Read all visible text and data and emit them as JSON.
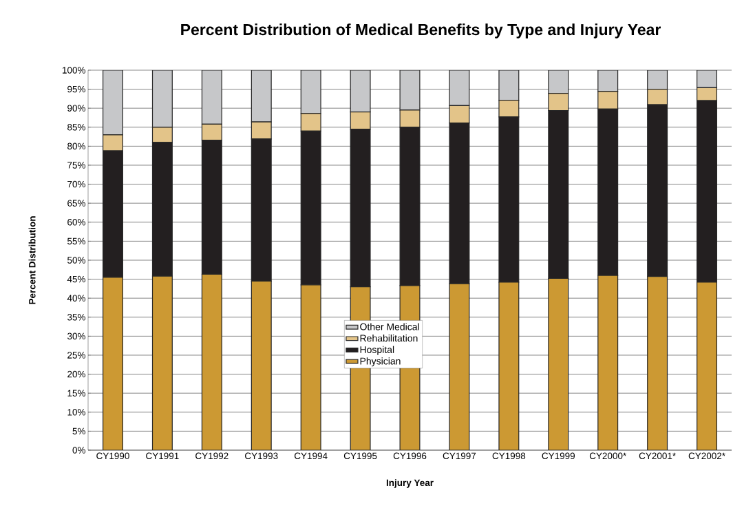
{
  "chart_data": {
    "type": "bar",
    "title": "Percent Distribution of Medical Benefits by Type and Injury Year",
    "xlabel": "Injury Year",
    "ylabel": "Percent Distribution",
    "categories": [
      "CY1990",
      "CY1991",
      "CY1992",
      "CY1993",
      "CY1994",
      "CY1995",
      "CY1996",
      "CY1997",
      "CY1998",
      "CY1999",
      "CY2000*",
      "CY2001*",
      "CY2002*"
    ],
    "series": [
      {
        "name": "Physician",
        "color": "#cc9933",
        "values": [
          45.5,
          45.8,
          46.3,
          44.5,
          43.5,
          43.0,
          43.3,
          43.8,
          44.2,
          45.2,
          46.0,
          45.7,
          44.2
        ]
      },
      {
        "name": "Hospital",
        "color": "#231f20",
        "values": [
          33.3,
          35.2,
          35.3,
          37.4,
          40.5,
          41.5,
          41.7,
          42.3,
          43.5,
          44.2,
          43.8,
          45.2,
          47.8
        ]
      },
      {
        "name": "Rehabilitation",
        "color": "#e3c489",
        "values": [
          4.2,
          4.0,
          4.2,
          4.5,
          4.6,
          4.5,
          4.5,
          4.6,
          4.4,
          4.5,
          4.6,
          4.1,
          3.4
        ]
      },
      {
        "name": "Other Medical",
        "color": "#c6c7c9",
        "values": [
          17.0,
          15.0,
          14.2,
          13.6,
          11.4,
          11.0,
          10.5,
          9.3,
          7.9,
          6.1,
          5.6,
          5.0,
          4.6
        ]
      }
    ],
    "stacked": true,
    "ylim": [
      0,
      100
    ],
    "yticks": [
      {
        "value": 0,
        "label": "0%"
      },
      {
        "value": 5,
        "label": "5%"
      },
      {
        "value": 10,
        "label": "10%"
      },
      {
        "value": 15,
        "label": "15%"
      },
      {
        "value": 20,
        "label": "20%"
      },
      {
        "value": 25,
        "label": "25%"
      },
      {
        "value": 30,
        "label": "30%"
      },
      {
        "value": 35,
        "label": "35%"
      },
      {
        "value": 40,
        "label": "40%"
      },
      {
        "value": 45,
        "label": "45%"
      },
      {
        "value": 50,
        "label": "50%"
      },
      {
        "value": 55,
        "label": "55%"
      },
      {
        "value": 60,
        "label": "60%"
      },
      {
        "value": 65,
        "label": "65%"
      },
      {
        "value": 70,
        "label": "70%"
      },
      {
        "value": 75,
        "label": "75%"
      },
      {
        "value": 80,
        "label": "80%"
      },
      {
        "value": 85,
        "label": "85%"
      },
      {
        "value": 90,
        "label": "90%"
      },
      {
        "value": 95,
        "label": "95%"
      },
      {
        "value": 100,
        "label": "100%"
      }
    ],
    "grid": "y",
    "legend": "center"
  }
}
